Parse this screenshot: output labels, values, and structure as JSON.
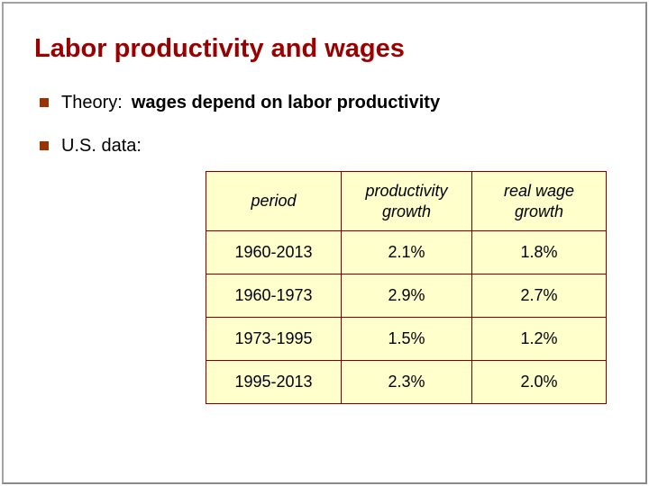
{
  "slide": {
    "title": "Labor productivity and wages",
    "bullets": [
      {
        "label": "Theory:",
        "emphasis": "wages depend on labor productivity"
      },
      {
        "label": "U.S. data:",
        "emphasis": ""
      }
    ]
  },
  "table": {
    "headers": [
      "period",
      "productivity growth",
      "real wage growth"
    ],
    "rows": [
      [
        "1960-2013",
        "2.1%",
        "1.8%"
      ],
      [
        "1960-1973",
        "2.9%",
        "2.7%"
      ],
      [
        "1973-1995",
        "1.5%",
        "1.2%"
      ],
      [
        "1995-2013",
        "2.3%",
        "2.0%"
      ]
    ]
  },
  "colors": {
    "title_text": "#990000",
    "bullet_square": "#993300",
    "body_text": "#000000",
    "table_background": "#FFFFCC",
    "table_border": "#800000",
    "frame_border": "#A3A3A3"
  }
}
